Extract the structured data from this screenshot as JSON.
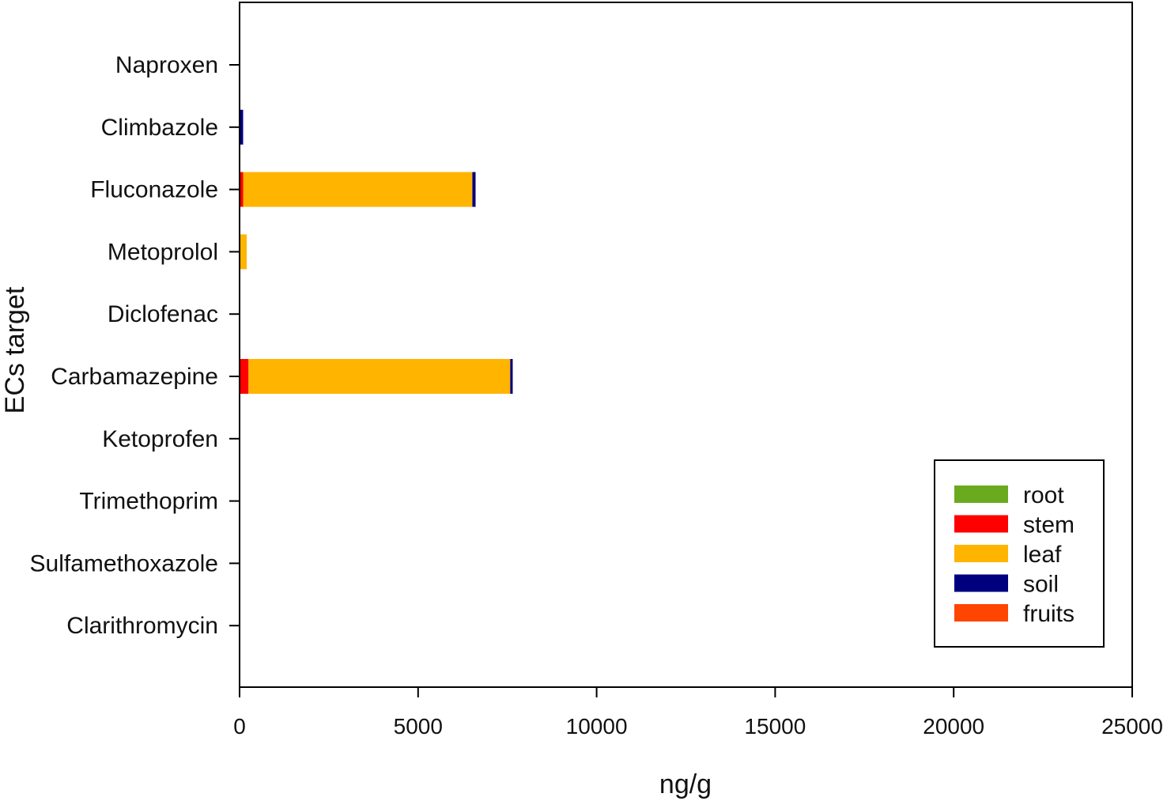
{
  "chart_data": {
    "type": "bar",
    "orientation": "horizontal",
    "stacked": true,
    "title": "",
    "xlabel": "ng/g",
    "ylabel": "ECs target",
    "xlim": [
      0,
      25000
    ],
    "xticks": [
      "0",
      "5000",
      "10000",
      "15000",
      "20000",
      "25000"
    ],
    "xtick_values": [
      0,
      5000,
      10000,
      15000,
      20000,
      25000
    ],
    "grid": false,
    "legend_position": "bottom-right",
    "categories": [
      "Naproxen",
      "Climbazole",
      "Fluconazole",
      "Metoprolol",
      "Diclofenac",
      "Carbamazepine",
      "Ketoprofen",
      "Trimethoprim",
      "Sulfamethoxazole",
      "Clarithromycin"
    ],
    "series": [
      {
        "name": "root",
        "color": "#6aaa1e",
        "values": [
          0,
          0,
          0,
          0,
          0,
          0,
          0,
          0,
          0,
          0
        ]
      },
      {
        "name": "stem",
        "color": "#ff0000",
        "values": [
          0,
          0,
          100,
          0,
          0,
          250,
          0,
          0,
          0,
          0
        ]
      },
      {
        "name": "leaf",
        "color": "#ffb400",
        "values": [
          0,
          0,
          6420,
          200,
          0,
          7330,
          0,
          0,
          0,
          0
        ]
      },
      {
        "name": "soil",
        "color": "#00007f",
        "values": [
          0,
          100,
          90,
          0,
          0,
          70,
          0,
          0,
          0,
          0
        ]
      },
      {
        "name": "fruits",
        "color": "#ff4500",
        "values": [
          0,
          0,
          0,
          0,
          0,
          0,
          0,
          0,
          0,
          0
        ]
      }
    ]
  }
}
